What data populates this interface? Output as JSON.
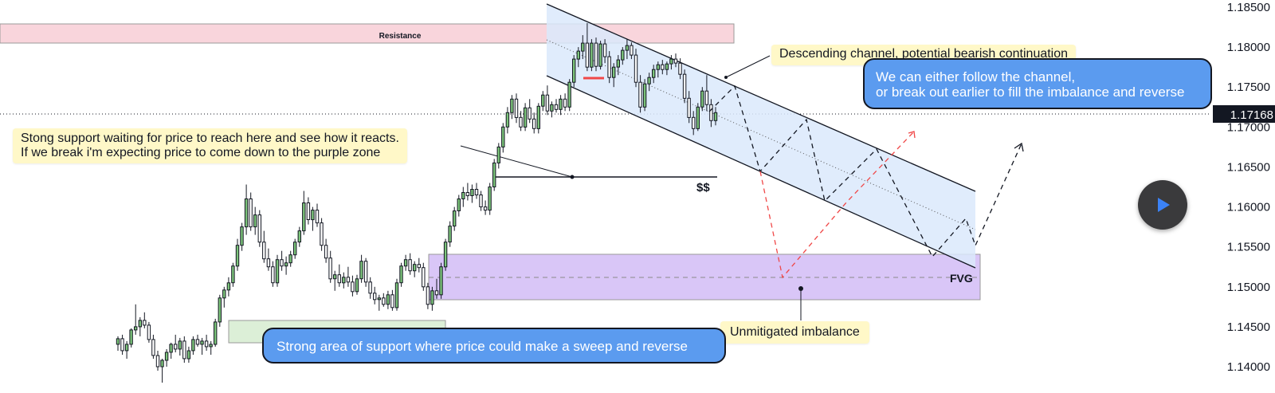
{
  "chart_data": {
    "type": "candlestick",
    "price_axis": {
      "ticks": [
        "1.18500",
        "1.18000",
        "1.17500",
        "1.17000",
        "1.16500",
        "1.16000",
        "1.15500",
        "1.15000",
        "1.14500",
        "1.14000"
      ],
      "ylim": [
        1.1375,
        1.1875
      ],
      "current_price": "1.17168"
    },
    "candles": [
      [
        1.1428,
        1.1438,
        1.142,
        1.1435
      ],
      [
        1.1435,
        1.144,
        1.1415,
        1.142
      ],
      [
        1.142,
        1.1432,
        1.141,
        1.1428
      ],
      [
        1.1428,
        1.1448,
        1.1424,
        1.1446
      ],
      [
        1.1446,
        1.1478,
        1.144,
        1.145
      ],
      [
        1.145,
        1.1462,
        1.1438,
        1.1458
      ],
      [
        1.1458,
        1.1468,
        1.1448,
        1.1452
      ],
      [
        1.1452,
        1.1456,
        1.143,
        1.1434
      ],
      [
        1.1434,
        1.144,
        1.141,
        1.1414
      ],
      [
        1.1414,
        1.142,
        1.1395,
        1.14
      ],
      [
        1.14,
        1.141,
        1.138,
        1.1408
      ],
      [
        1.1408,
        1.1422,
        1.14,
        1.1418
      ],
      [
        1.1418,
        1.143,
        1.141,
        1.1428
      ],
      [
        1.1428,
        1.144,
        1.1418,
        1.1422
      ],
      [
        1.1422,
        1.1436,
        1.1414,
        1.1432
      ],
      [
        1.1432,
        1.1438,
        1.1405,
        1.141
      ],
      [
        1.141,
        1.1425,
        1.1405,
        1.142
      ],
      [
        1.142,
        1.1438,
        1.1415,
        1.1434
      ],
      [
        1.1434,
        1.144,
        1.1425,
        1.1428
      ],
      [
        1.1428,
        1.1436,
        1.1415,
        1.1432
      ],
      [
        1.1432,
        1.144,
        1.142,
        1.1425
      ],
      [
        1.1425,
        1.1432,
        1.1415,
        1.1428
      ],
      [
        1.1428,
        1.146,
        1.1425,
        1.1456
      ],
      [
        1.1456,
        1.149,
        1.145,
        1.1486
      ],
      [
        1.1486,
        1.15,
        1.1474,
        1.1496
      ],
      [
        1.1496,
        1.1512,
        1.1488,
        1.1505
      ],
      [
        1.1505,
        1.153,
        1.15,
        1.1526
      ],
      [
        1.1526,
        1.156,
        1.152,
        1.1552
      ],
      [
        1.1552,
        1.158,
        1.1545,
        1.1575
      ],
      [
        1.1575,
        1.1628,
        1.1565,
        1.161
      ],
      [
        1.161,
        1.1618,
        1.157,
        1.1575
      ],
      [
        1.1575,
        1.16,
        1.1565,
        1.159
      ],
      [
        1.159,
        1.1596,
        1.155,
        1.1556
      ],
      [
        1.1556,
        1.157,
        1.153,
        1.1535
      ],
      [
        1.1535,
        1.1548,
        1.152,
        1.1525
      ],
      [
        1.1525,
        1.1532,
        1.15,
        1.1505
      ],
      [
        1.1505,
        1.154,
        1.15,
        1.1534
      ],
      [
        1.1534,
        1.1545,
        1.152,
        1.1526
      ],
      [
        1.1526,
        1.1538,
        1.1515,
        1.153
      ],
      [
        1.153,
        1.1545,
        1.1525,
        1.154
      ],
      [
        1.154,
        1.156,
        1.1535,
        1.1556
      ],
      [
        1.1556,
        1.1575,
        1.155,
        1.157
      ],
      [
        1.157,
        1.162,
        1.1565,
        1.1605
      ],
      [
        1.1605,
        1.1612,
        1.1578,
        1.1584
      ],
      [
        1.1584,
        1.16,
        1.157,
        1.1596
      ],
      [
        1.1596,
        1.1604,
        1.1575,
        1.158
      ],
      [
        1.158,
        1.1586,
        1.1545,
        1.1552
      ],
      [
        1.1552,
        1.156,
        1.153,
        1.1536
      ],
      [
        1.1536,
        1.1545,
        1.1505,
        1.151
      ],
      [
        1.151,
        1.152,
        1.1495,
        1.1515
      ],
      [
        1.1515,
        1.1528,
        1.15,
        1.1505
      ],
      [
        1.1505,
        1.1518,
        1.1498,
        1.1512
      ],
      [
        1.1512,
        1.1525,
        1.15,
        1.1506
      ],
      [
        1.1506,
        1.1514,
        1.1488,
        1.1494
      ],
      [
        1.1494,
        1.1515,
        1.149,
        1.151
      ],
      [
        1.151,
        1.154,
        1.1505,
        1.1532
      ],
      [
        1.1532,
        1.1536,
        1.15,
        1.1506
      ],
      [
        1.1506,
        1.1512,
        1.1485,
        1.1492
      ],
      [
        1.1492,
        1.15,
        1.1478,
        1.1484
      ],
      [
        1.1484,
        1.149,
        1.147,
        1.1486
      ],
      [
        1.1486,
        1.1492,
        1.1475,
        1.1478
      ],
      [
        1.1478,
        1.1495,
        1.1472,
        1.149
      ],
      [
        1.149,
        1.1496,
        1.147,
        1.1474
      ],
      [
        1.1474,
        1.151,
        1.147,
        1.1505
      ],
      [
        1.1505,
        1.153,
        1.15,
        1.1526
      ],
      [
        1.1526,
        1.154,
        1.152,
        1.1534
      ],
      [
        1.1534,
        1.1542,
        1.1515,
        1.152
      ],
      [
        1.152,
        1.1532,
        1.1512,
        1.1528
      ],
      [
        1.1528,
        1.1536,
        1.1518,
        1.1524
      ],
      [
        1.1524,
        1.153,
        1.1495,
        1.15
      ],
      [
        1.15,
        1.1505,
        1.1472,
        1.1478
      ],
      [
        1.1478,
        1.15,
        1.147,
        1.1495
      ],
      [
        1.1495,
        1.151,
        1.1485,
        1.149
      ],
      [
        1.149,
        1.153,
        1.1485,
        1.1525
      ],
      [
        1.1525,
        1.156,
        1.152,
        1.1556
      ],
      [
        1.1556,
        1.1582,
        1.155,
        1.1576
      ],
      [
        1.1576,
        1.16,
        1.157,
        1.1595
      ],
      [
        1.1595,
        1.1615,
        1.1588,
        1.161
      ],
      [
        1.161,
        1.1625,
        1.16,
        1.1618
      ],
      [
        1.1618,
        1.163,
        1.1608,
        1.1614
      ],
      [
        1.1614,
        1.1628,
        1.1605,
        1.1622
      ],
      [
        1.1622,
        1.163,
        1.161,
        1.1615
      ],
      [
        1.1615,
        1.162,
        1.1595,
        1.16
      ],
      [
        1.16,
        1.1608,
        1.159,
        1.1596
      ],
      [
        1.1596,
        1.163,
        1.159,
        1.1625
      ],
      [
        1.1625,
        1.166,
        1.162,
        1.1655
      ],
      [
        1.1655,
        1.168,
        1.1648,
        1.1675
      ],
      [
        1.1675,
        1.1705,
        1.1668,
        1.17
      ],
      [
        1.17,
        1.1725,
        1.1692,
        1.1718
      ],
      [
        1.1718,
        1.174,
        1.171,
        1.1735
      ],
      [
        1.1735,
        1.1742,
        1.1705,
        1.1712
      ],
      [
        1.1712,
        1.172,
        1.1695,
        1.17
      ],
      [
        1.17,
        1.173,
        1.1695,
        1.1724
      ],
      [
        1.1724,
        1.1735,
        1.1705,
        1.171
      ],
      [
        1.171,
        1.1718,
        1.1692,
        1.1698
      ],
      [
        1.1698,
        1.173,
        1.1692,
        1.1726
      ],
      [
        1.1726,
        1.1745,
        1.172,
        1.174
      ],
      [
        1.174,
        1.1752,
        1.1715,
        1.172
      ],
      [
        1.172,
        1.1732,
        1.1712,
        1.1728
      ],
      [
        1.1728,
        1.1735,
        1.1718,
        1.1722
      ],
      [
        1.1722,
        1.174,
        1.1715,
        1.1735
      ],
      [
        1.1735,
        1.1742,
        1.172,
        1.1725
      ],
      [
        1.1725,
        1.176,
        1.172,
        1.1756
      ],
      [
        1.1756,
        1.179,
        1.175,
        1.1785
      ],
      [
        1.1785,
        1.18,
        1.1775,
        1.1795
      ],
      [
        1.1795,
        1.1815,
        1.1785,
        1.1805
      ],
      [
        1.1805,
        1.183,
        1.177,
        1.1775
      ],
      [
        1.1775,
        1.181,
        1.177,
        1.1805
      ],
      [
        1.1805,
        1.1812,
        1.177,
        1.1776
      ],
      [
        1.1776,
        1.1808,
        1.1772,
        1.1804
      ],
      [
        1.1804,
        1.181,
        1.178,
        1.1788
      ],
      [
        1.1788,
        1.1795,
        1.1755,
        1.1762
      ],
      [
        1.1762,
        1.178,
        1.175,
        1.1775
      ],
      [
        1.1775,
        1.179,
        1.1765,
        1.1784
      ],
      [
        1.1784,
        1.18,
        1.1778,
        1.1796
      ],
      [
        1.1796,
        1.181,
        1.1785,
        1.1802
      ],
      [
        1.1802,
        1.1806,
        1.1785,
        1.179
      ],
      [
        1.179,
        1.1798,
        1.175,
        1.1756
      ],
      [
        1.1756,
        1.1765,
        1.1718,
        1.1725
      ],
      [
        1.1725,
        1.176,
        1.172,
        1.1754
      ],
      [
        1.1754,
        1.1768,
        1.1745,
        1.1762
      ],
      [
        1.1762,
        1.1778,
        1.1755,
        1.1772
      ],
      [
        1.1772,
        1.1782,
        1.1762,
        1.1778
      ],
      [
        1.1778,
        1.1784,
        1.1766,
        1.1772
      ],
      [
        1.1772,
        1.1782,
        1.1765,
        1.1779
      ],
      [
        1.1779,
        1.179,
        1.1772,
        1.1785
      ],
      [
        1.1785,
        1.1792,
        1.1775,
        1.178
      ],
      [
        1.178,
        1.1786,
        1.176,
        1.1766
      ],
      [
        1.1766,
        1.1772,
        1.173,
        1.1736
      ],
      [
        1.1736,
        1.1745,
        1.1705,
        1.1712
      ],
      [
        1.1712,
        1.172,
        1.169,
        1.1698
      ],
      [
        1.1698,
        1.173,
        1.1695,
        1.1725
      ],
      [
        1.1725,
        1.175,
        1.172,
        1.1745
      ],
      [
        1.1745,
        1.1765,
        1.172,
        1.1728
      ],
      [
        1.1728,
        1.1735,
        1.17,
        1.1708
      ],
      [
        1.1708,
        1.1725,
        1.1702,
        1.1718
      ]
    ],
    "annotations": {
      "resistance_label": "Resistance",
      "liquidity_label": "$$",
      "fvg_label": "FVG"
    }
  },
  "notes": {
    "support_note_line1": "Stong support waiting for price to reach here and see how it reacts.",
    "support_note_line2": "If we break i'm expecting price to come down to the purple zone",
    "channel_note": "Descending channel, potential bearish continuation",
    "imbalance_note": "Unmitigated imbalance"
  },
  "bubbles": {
    "channel_bubble_line1": "We can either follow the channel,",
    "channel_bubble_line2": "or break out earlier to fill the imbalance and reverse",
    "support_bubble": "Strong area of support where price could make a sweep and reverse"
  },
  "colors": {
    "bull_fill": "#7cc47a",
    "candle_border": "#131722",
    "resistance_fill": "#f9d5dc",
    "channel_fill": "#dbe9fb",
    "imbalance_fill": "#d9c6f7",
    "support_fill": "#dcefd7",
    "bubble_blue": "#5b9bef",
    "note_yellow": "#fff8c8",
    "projection_red": "#f04747"
  },
  "play_icon": "play-icon"
}
